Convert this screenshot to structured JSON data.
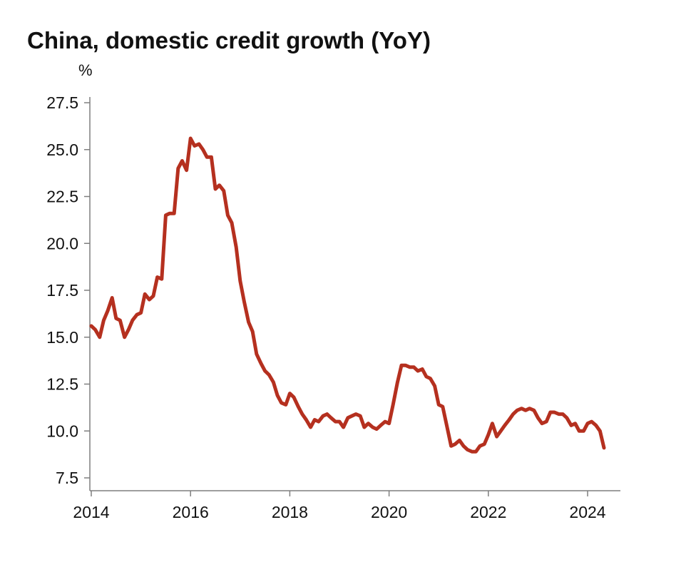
{
  "chart_data": {
    "type": "line",
    "title": "China, domestic credit growth (YoY)",
    "ylabel": "%",
    "xlabel": "",
    "ylim": [
      7.5,
      27.5
    ],
    "xlim": [
      2014,
      2024.6
    ],
    "y_ticks": [
      "7.5",
      "10.0",
      "12.5",
      "15.0",
      "17.5",
      "20.0",
      "22.5",
      "25.0",
      "27.5"
    ],
    "x_ticks": [
      "2014",
      "2016",
      "2018",
      "2020",
      "2022",
      "2024"
    ],
    "grid": false,
    "colors": {
      "line": "#b5301f",
      "axis": "#7f7f7f"
    },
    "series": [
      {
        "x": [
          2014.0,
          2014.08,
          2014.17,
          2014.25,
          2014.33,
          2014.42,
          2014.5,
          2014.58,
          2014.67,
          2014.75,
          2014.83,
          2014.92,
          2015.0,
          2015.08,
          2015.17,
          2015.25,
          2015.33,
          2015.42,
          2015.5,
          2015.58,
          2015.67,
          2015.75,
          2015.83,
          2015.92,
          2016.0,
          2016.08,
          2016.17,
          2016.25,
          2016.33,
          2016.42,
          2016.5,
          2016.58,
          2016.67,
          2016.75,
          2016.83,
          2016.92,
          2017.0,
          2017.08,
          2017.17,
          2017.25,
          2017.33,
          2017.42,
          2017.5,
          2017.58,
          2017.67,
          2017.75,
          2017.83,
          2017.92,
          2018.0,
          2018.08,
          2018.17,
          2018.25,
          2018.33,
          2018.42,
          2018.5,
          2018.58,
          2018.67,
          2018.75,
          2018.83,
          2018.92,
          2019.0,
          2019.08,
          2019.17,
          2019.25,
          2019.33,
          2019.42,
          2019.5,
          2019.58,
          2019.67,
          2019.75,
          2019.83,
          2019.92,
          2020.0,
          2020.08,
          2020.17,
          2020.25,
          2020.33,
          2020.42,
          2020.5,
          2020.58,
          2020.67,
          2020.75,
          2020.83,
          2020.92,
          2021.0,
          2021.08,
          2021.17,
          2021.25,
          2021.33,
          2021.42,
          2021.5,
          2021.58,
          2021.67,
          2021.75,
          2021.83,
          2021.92,
          2022.0,
          2022.08,
          2022.17,
          2022.25,
          2022.33,
          2022.42,
          2022.5,
          2022.58,
          2022.67,
          2022.75,
          2022.83,
          2022.92,
          2023.0,
          2023.08,
          2023.17,
          2023.25,
          2023.33,
          2023.42,
          2023.5,
          2023.58,
          2023.67,
          2023.75,
          2023.83,
          2023.92,
          2024.0,
          2024.08,
          2024.17,
          2024.25,
          2024.33
        ],
        "values": [
          15.6,
          15.4,
          15.0,
          15.9,
          16.4,
          17.1,
          16.0,
          15.9,
          15.0,
          15.4,
          15.9,
          16.2,
          16.3,
          17.3,
          17.0,
          17.2,
          18.2,
          18.1,
          21.5,
          21.6,
          21.6,
          24.0,
          24.4,
          23.9,
          25.6,
          25.2,
          25.3,
          25.0,
          24.6,
          24.6,
          22.9,
          23.1,
          22.8,
          21.5,
          21.1,
          19.8,
          18.0,
          16.9,
          15.8,
          15.3,
          14.1,
          13.6,
          13.2,
          13.0,
          12.6,
          11.9,
          11.5,
          11.4,
          12.0,
          11.8,
          11.3,
          10.9,
          10.6,
          10.2,
          10.6,
          10.5,
          10.8,
          10.9,
          10.7,
          10.5,
          10.5,
          10.2,
          10.7,
          10.8,
          10.9,
          10.8,
          10.2,
          10.4,
          10.2,
          10.1,
          10.3,
          10.5,
          10.4,
          11.4,
          12.6,
          13.5,
          13.5,
          13.4,
          13.4,
          13.2,
          13.3,
          12.9,
          12.8,
          12.4,
          11.4,
          11.3,
          10.2,
          9.2,
          9.3,
          9.5,
          9.2,
          9.0,
          8.9,
          8.9,
          9.2,
          9.3,
          9.8,
          10.4,
          9.7,
          10.0,
          10.3,
          10.6,
          10.9,
          11.1,
          11.2,
          11.1,
          11.2,
          11.1,
          10.7,
          10.4,
          10.5,
          11.0,
          11.0,
          10.9,
          10.9,
          10.7,
          10.3,
          10.4,
          10.0,
          10.0,
          10.4,
          10.5,
          10.3,
          10.0,
          9.1
        ]
      }
    ]
  }
}
